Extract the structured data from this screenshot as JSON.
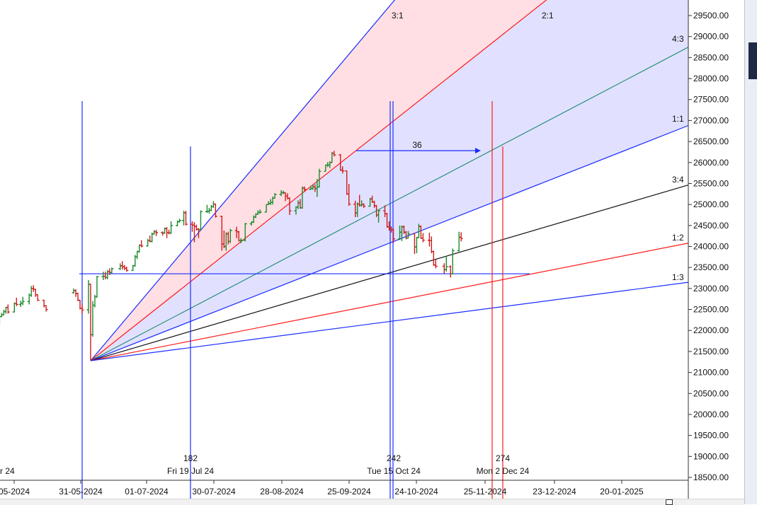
{
  "colors": {
    "background": "#ffffff",
    "up_bar": "#1b8a2a",
    "down_bar": "#d11b1b",
    "blue_line": "#1a2cff",
    "red_line": "#ff1a1a",
    "green_line": "#2b8f7a",
    "black_line": "#111111",
    "fan_fill_pink": "#ffd9de",
    "fan_fill_blue": "#dcdcff"
  },
  "chart_data": {
    "type": "ohlc",
    "y_axis": {
      "min": 18500,
      "max": 29500,
      "ticks": [
        "29500.00",
        "29000.00",
        "28500.00",
        "28000.00",
        "27500.00",
        "27000.00",
        "26500.00",
        "26000.00",
        "25500.00",
        "25000.00",
        "24500.00",
        "24000.00",
        "23500.00",
        "23000.00",
        "22500.00",
        "22000.00",
        "21500.00",
        "21000.00",
        "20500.00",
        "20000.00",
        "19500.00",
        "19000.00",
        "18500.00"
      ]
    },
    "x_axis": {
      "tick_labels": [
        "05-2024",
        "31-05-2024",
        "01-07-2024",
        "30-07-2024",
        "28-08-2024",
        "25-09-2024",
        "24-10-2024",
        "25-11-2024",
        "23-12-2024",
        "20-01-2025"
      ]
    },
    "gann_fan": {
      "origin_date": "2024-06-04",
      "origin_price": 21280,
      "angle_labels": [
        "3:1",
        "2:1",
        "4:3",
        "1:1",
        "3:4",
        "1:2",
        "1:3"
      ]
    },
    "time_cycles": [
      {
        "count": "182",
        "date_label": "Fri 19 Jul 24"
      },
      {
        "count": "242",
        "date_label": "Tue 15 Oct 24"
      },
      {
        "count": "274",
        "date_label": "Mon 2 Dec 24"
      }
    ],
    "partial_left_date_label": "r 24",
    "span_measure_label": "36",
    "horizontal_level": 23350,
    "prices": [
      [
        "2024-04-08",
        22700,
        22790,
        22660,
        22740
      ],
      [
        "2024-04-09",
        22740,
        22760,
        22590,
        22650
      ],
      [
        "2024-04-10",
        22650,
        22800,
        22630,
        22760
      ],
      [
        "2024-04-12",
        22760,
        22790,
        22500,
        22540
      ],
      [
        "2024-04-15",
        22540,
        22560,
        22300,
        22330
      ],
      [
        "2024-04-16",
        22330,
        22360,
        22200,
        22240
      ],
      [
        "2024-04-18",
        22240,
        22300,
        22000,
        22050
      ],
      [
        "2024-04-19",
        22050,
        22180,
        21800,
        22150
      ],
      [
        "2024-04-22",
        22150,
        22380,
        22130,
        22330
      ],
      [
        "2024-04-23",
        22330,
        22420,
        22320,
        22370
      ],
      [
        "2024-04-24",
        22370,
        22490,
        22360,
        22450
      ],
      [
        "2024-04-25",
        22450,
        22560,
        22400,
        22550
      ],
      [
        "2024-04-26",
        22550,
        22620,
        22400,
        22440
      ],
      [
        "2024-04-29",
        22440,
        22670,
        22430,
        22640
      ],
      [
        "2024-04-30",
        22640,
        22780,
        22580,
        22620
      ],
      [
        "2024-05-02",
        22620,
        22710,
        22560,
        22650
      ],
      [
        "2024-05-03",
        22650,
        22800,
        22600,
        22690
      ],
      [
        "2024-05-06",
        22690,
        22880,
        22620,
        22840
      ],
      [
        "2024-05-07",
        22840,
        23060,
        22800,
        23000
      ],
      [
        "2024-05-08",
        23000,
        23080,
        22920,
        22980
      ],
      [
        "2024-05-09",
        22980,
        22990,
        22800,
        22850
      ],
      [
        "2024-05-10",
        22850,
        22860,
        22700,
        22720
      ],
      [
        "2024-05-13",
        22720,
        22730,
        22550,
        22590
      ],
      [
        "2024-05-14",
        22590,
        22600,
        22450,
        22500
      ],
      [
        "2024-05-27",
        22900,
        23000,
        22880,
        22950
      ],
      [
        "2024-05-28",
        22950,
        22980,
        22800,
        22880
      ],
      [
        "2024-05-29",
        22880,
        22900,
        22700,
        22720
      ],
      [
        "2024-05-30",
        22720,
        22730,
        22500,
        22530
      ],
      [
        "2024-05-31",
        22530,
        22620,
        22400,
        22490
      ],
      [
        "2024-06-03",
        22490,
        23200,
        22400,
        23100
      ],
      [
        "2024-06-04",
        23100,
        23110,
        21280,
        21900
      ],
      [
        "2024-06-05",
        21900,
        22700,
        21850,
        22600
      ],
      [
        "2024-06-06",
        22600,
        22850,
        22550,
        22800
      ],
      [
        "2024-06-07",
        22800,
        23300,
        22780,
        23280
      ],
      [
        "2024-06-10",
        23280,
        23400,
        23200,
        23290
      ],
      [
        "2024-06-11",
        23290,
        23400,
        23220,
        23260
      ],
      [
        "2024-06-12",
        23260,
        23440,
        23220,
        23400
      ],
      [
        "2024-06-13",
        23400,
        23480,
        23320,
        23380
      ],
      [
        "2024-06-14",
        23380,
        23500,
        23360,
        23470
      ],
      [
        "2024-06-18",
        23470,
        23600,
        23440,
        23540
      ],
      [
        "2024-06-19",
        23540,
        23650,
        23450,
        23520
      ],
      [
        "2024-06-20",
        23520,
        23560,
        23440,
        23480
      ],
      [
        "2024-06-21",
        23480,
        23520,
        23400,
        23430
      ],
      [
        "2024-06-24",
        23430,
        23560,
        23420,
        23540
      ],
      [
        "2024-06-25",
        23540,
        23800,
        23520,
        23760
      ],
      [
        "2024-06-26",
        23760,
        23900,
        23700,
        23880
      ],
      [
        "2024-06-27",
        23880,
        24050,
        23850,
        24030
      ],
      [
        "2024-06-28",
        24030,
        24150,
        23980,
        24010
      ],
      [
        "2024-07-01",
        24010,
        24180,
        24000,
        24140
      ],
      [
        "2024-07-02",
        24140,
        24260,
        24100,
        24120
      ],
      [
        "2024-07-03",
        24120,
        24330,
        24100,
        24300
      ],
      [
        "2024-07-04",
        24300,
        24390,
        24280,
        24350
      ],
      [
        "2024-07-05",
        24350,
        24400,
        24250,
        24330
      ],
      [
        "2024-07-08",
        24330,
        24360,
        24260,
        24320
      ],
      [
        "2024-07-09",
        24320,
        24450,
        24300,
        24430
      ],
      [
        "2024-07-10",
        24430,
        24460,
        24200,
        24330
      ],
      [
        "2024-07-11",
        24330,
        24400,
        24290,
        24320
      ],
      [
        "2024-07-12",
        24320,
        24600,
        24300,
        24500
      ],
      [
        "2024-07-15",
        24500,
        24620,
        24480,
        24590
      ],
      [
        "2024-07-16",
        24590,
        24660,
        24570,
        24620
      ],
      [
        "2024-07-18",
        24620,
        24850,
        24500,
        24800
      ],
      [
        "2024-07-19",
        24800,
        24850,
        24500,
        24530
      ],
      [
        "2024-07-22",
        24530,
        24600,
        24350,
        24510
      ],
      [
        "2024-07-23",
        24510,
        24580,
        24100,
        24480
      ],
      [
        "2024-07-24",
        24480,
        24520,
        24380,
        24410
      ],
      [
        "2024-07-25",
        24410,
        24440,
        24200,
        24400
      ],
      [
        "2024-07-26",
        24400,
        24860,
        24380,
        24830
      ],
      [
        "2024-07-29",
        24830,
        24990,
        24800,
        24840
      ],
      [
        "2024-07-30",
        24840,
        24920,
        24780,
        24860
      ],
      [
        "2024-07-31",
        24860,
        24990,
        24840,
        24950
      ],
      [
        "2024-08-01",
        24950,
        25080,
        24920,
        25010
      ],
      [
        "2024-08-02",
        25010,
        25020,
        24690,
        24720
      ],
      [
        "2024-08-05",
        24720,
        24730,
        23900,
        24060
      ],
      [
        "2024-08-06",
        24060,
        24380,
        23960,
        24000
      ],
      [
        "2024-08-07",
        24000,
        24340,
        23900,
        24300
      ],
      [
        "2024-08-08",
        24300,
        24350,
        24050,
        24120
      ],
      [
        "2024-08-09",
        24120,
        24420,
        24080,
        24380
      ],
      [
        "2024-08-12",
        24380,
        24470,
        24200,
        24350
      ],
      [
        "2024-08-13",
        24350,
        24370,
        24120,
        24140
      ],
      [
        "2024-08-14",
        24140,
        24200,
        24080,
        24150
      ],
      [
        "2024-08-16",
        24150,
        24560,
        24120,
        24540
      ],
      [
        "2024-08-19",
        24540,
        24600,
        24500,
        24580
      ],
      [
        "2024-08-20",
        24580,
        24740,
        24560,
        24700
      ],
      [
        "2024-08-21",
        24700,
        24790,
        24680,
        24770
      ],
      [
        "2024-08-22",
        24770,
        24860,
        24750,
        24810
      ],
      [
        "2024-08-23",
        24810,
        24880,
        24780,
        24820
      ],
      [
        "2024-08-26",
        24820,
        25000,
        24810,
        25000
      ],
      [
        "2024-08-27",
        25000,
        25080,
        24990,
        25020
      ],
      [
        "2024-08-28",
        25020,
        25130,
        24990,
        25050
      ],
      [
        "2024-08-29",
        25050,
        25190,
        25000,
        25150
      ],
      [
        "2024-08-30",
        25150,
        25270,
        25140,
        25240
      ],
      [
        "2024-09-02",
        25240,
        25340,
        25200,
        25280
      ],
      [
        "2024-09-03",
        25280,
        25330,
        25250,
        25280
      ],
      [
        "2024-09-04",
        25280,
        25290,
        25080,
        25200
      ],
      [
        "2024-09-05",
        25200,
        25270,
        25120,
        25150
      ],
      [
        "2024-09-06",
        25150,
        25170,
        24750,
        24850
      ],
      [
        "2024-09-09",
        24850,
        24960,
        24760,
        24940
      ],
      [
        "2024-09-10",
        24940,
        25100,
        24890,
        25040
      ],
      [
        "2024-09-11",
        25040,
        25130,
        24900,
        24920
      ],
      [
        "2024-09-12",
        24920,
        25430,
        24900,
        25390
      ],
      [
        "2024-09-13",
        25390,
        25430,
        25300,
        25360
      ],
      [
        "2024-09-16",
        25360,
        25450,
        25350,
        25380
      ],
      [
        "2024-09-17",
        25380,
        25480,
        25350,
        25420
      ],
      [
        "2024-09-18",
        25420,
        25480,
        25300,
        25380
      ],
      [
        "2024-09-19",
        25380,
        25610,
        25180,
        25420
      ],
      [
        "2024-09-20",
        25420,
        25850,
        25400,
        25790
      ],
      [
        "2024-09-23",
        25790,
        25950,
        25790,
        25940
      ],
      [
        "2024-09-24",
        25940,
        26010,
        25890,
        25940
      ],
      [
        "2024-09-25",
        25940,
        26030,
        25870,
        26000
      ],
      [
        "2024-09-26",
        26000,
        26250,
        25990,
        26220
      ],
      [
        "2024-09-27",
        26220,
        26280,
        26150,
        26180
      ],
      [
        "2024-09-30",
        26180,
        26200,
        25800,
        25820
      ],
      [
        "2024-10-01",
        25820,
        25910,
        25740,
        25800
      ],
      [
        "2024-10-03",
        25800,
        25810,
        25230,
        25250
      ],
      [
        "2024-10-04",
        25250,
        25490,
        24970,
        25010
      ],
      [
        "2024-10-07",
        25010,
        25090,
        24700,
        24800
      ],
      [
        "2024-10-08",
        24800,
        25050,
        24700,
        25010
      ],
      [
        "2024-10-09",
        25010,
        25230,
        24950,
        24980
      ],
      [
        "2024-10-10",
        24980,
        25100,
        24950,
        25000
      ],
      [
        "2024-10-11",
        25000,
        25030,
        24920,
        24960
      ],
      [
        "2024-10-14",
        24960,
        25160,
        24950,
        25130
      ],
      [
        "2024-10-15",
        25130,
        25210,
        25040,
        25060
      ],
      [
        "2024-10-16",
        25060,
        25090,
        24920,
        24970
      ],
      [
        "2024-10-17",
        24970,
        24990,
        24700,
        24750
      ],
      [
        "2024-10-18",
        24750,
        24880,
        24570,
        24850
      ],
      [
        "2024-10-21",
        24850,
        24980,
        24700,
        24780
      ],
      [
        "2024-10-22",
        24780,
        24800,
        24450,
        24470
      ],
      [
        "2024-10-23",
        24470,
        24600,
        24380,
        24430
      ],
      [
        "2024-10-24",
        24430,
        24480,
        24330,
        24400
      ],
      [
        "2024-10-25",
        24400,
        24430,
        24080,
        24180
      ],
      [
        "2024-10-28",
        24180,
        24500,
        24150,
        24340
      ],
      [
        "2024-10-29",
        24340,
        24500,
        24130,
        24470
      ],
      [
        "2024-10-30",
        24470,
        24500,
        24300,
        24340
      ],
      [
        "2024-10-31",
        24340,
        24370,
        24170,
        24200
      ],
      [
        "2024-11-01",
        24200,
        24370,
        24190,
        24300
      ],
      [
        "2024-11-04",
        24300,
        24320,
        23820,
        23990
      ],
      [
        "2024-11-05",
        23990,
        24230,
        23840,
        24210
      ],
      [
        "2024-11-06",
        24210,
        24540,
        24200,
        24480
      ],
      [
        "2024-11-07",
        24480,
        24500,
        24180,
        24200
      ],
      [
        "2024-11-08",
        24200,
        24320,
        24100,
        24150
      ],
      [
        "2024-11-11",
        24150,
        24330,
        24000,
        24140
      ],
      [
        "2024-11-12",
        24140,
        24240,
        23840,
        23880
      ],
      [
        "2024-11-13",
        23880,
        23900,
        23540,
        23560
      ],
      [
        "2024-11-14",
        23560,
        23680,
        23480,
        23530
      ],
      [
        "2024-11-18",
        23530,
        23600,
        23350,
        23450
      ],
      [
        "2024-11-19",
        23450,
        23780,
        23400,
        23520
      ],
      [
        "2024-11-21",
        23520,
        23550,
        23260,
        23350
      ],
      [
        "2024-11-22",
        23350,
        23950,
        23340,
        23900
      ],
      [
        "2024-11-25",
        23900,
        24350,
        23880,
        24220
      ],
      [
        "2024-11-26",
        24220,
        24340,
        24120,
        24190
      ]
    ]
  }
}
